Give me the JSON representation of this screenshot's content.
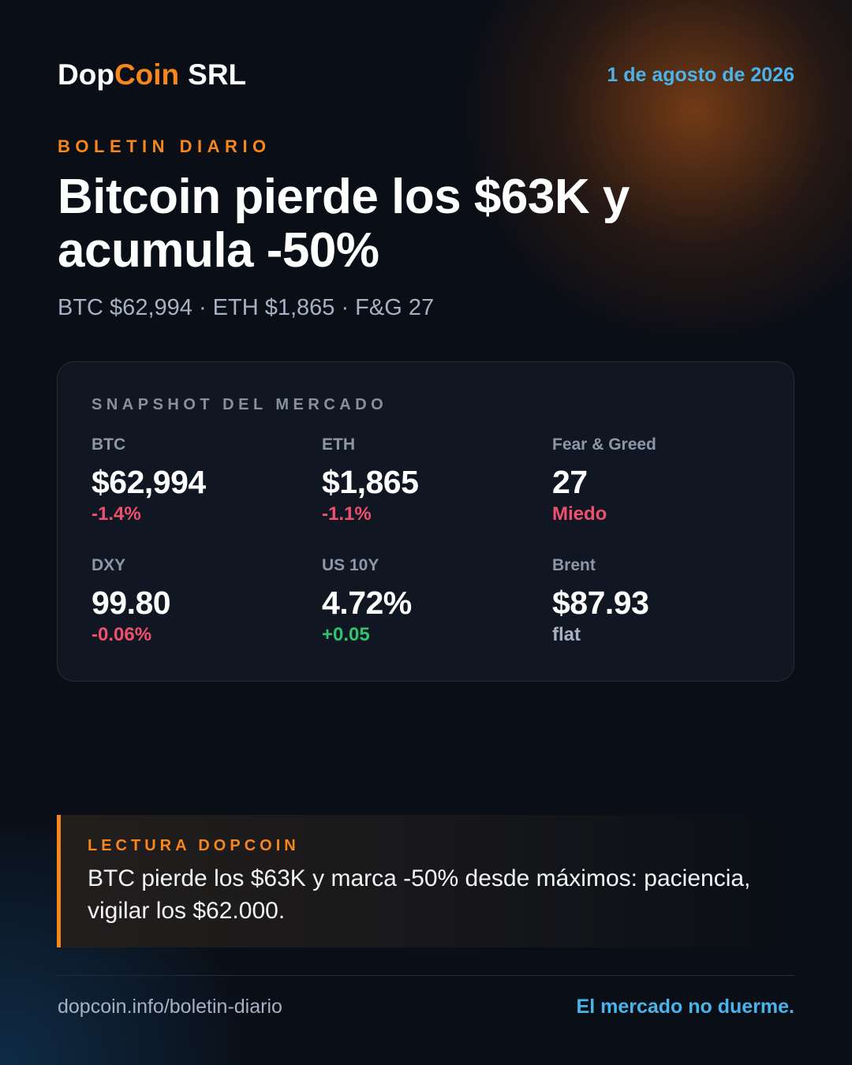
{
  "header": {
    "brand": [
      "Dop",
      "Coin",
      "SRL"
    ],
    "date": "1 de agosto de 2026"
  },
  "kicker": "BOLETIN DIARIO",
  "headline": "Bitcoin pierde los $63K y acumula -50%",
  "subline": "BTC $62,994 · ETH $1,865 · F&G 27",
  "snapshot": {
    "title": "SNAPSHOT DEL MERCADO",
    "metrics": [
      {
        "label": "BTC",
        "value": "$62,994",
        "change": "-1.4%",
        "color": "#f0506e"
      },
      {
        "label": "ETH",
        "value": "$1,865",
        "change": "-1.1%",
        "color": "#f0506e"
      },
      {
        "label": "Fear & Greed",
        "value": "27",
        "change": "Miedo",
        "color": "#f0506e"
      },
      {
        "label": "DXY",
        "value": "99.80",
        "change": "-0.06%",
        "color": "#f0506e"
      },
      {
        "label": "US 10Y",
        "value": "4.72%",
        "change": "+0.05",
        "color": "#2fc46b"
      },
      {
        "label": "Brent",
        "value": "$87.93",
        "change": "flat",
        "color": "#a6b1c4"
      }
    ]
  },
  "reading": {
    "label": "LECTURA DOPCOIN",
    "text": "BTC pierde los $63K y marca -50% desde máximos: paciencia, vigilar los $62.000."
  },
  "footer": {
    "url": "dopcoin.info/boletin-diario",
    "tagline": "El mercado no duerme."
  }
}
